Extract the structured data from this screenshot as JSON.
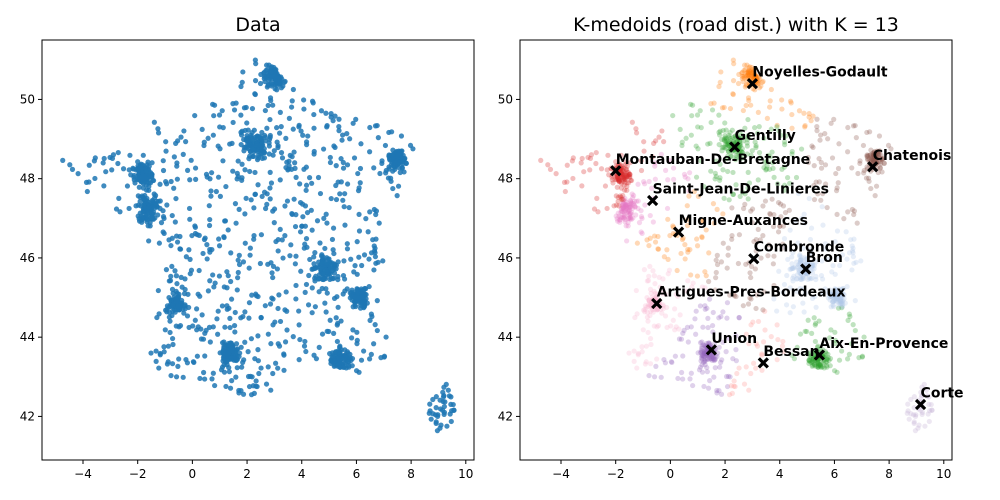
{
  "chart_data": [
    {
      "type": "scatter",
      "title": "Data",
      "xlim": [
        -5.5,
        10.3
      ],
      "ylim": [
        40.9,
        51.5
      ],
      "xticks": [
        -4,
        -2,
        0,
        2,
        4,
        6,
        8,
        10
      ],
      "yticks": [
        42,
        44,
        46,
        48,
        50
      ],
      "xtick_labels": [
        "−4",
        "−2",
        "0",
        "2",
        "4",
        "6",
        "8",
        "10"
      ],
      "ytick_labels": [
        "42",
        "44",
        "46",
        "48",
        "50"
      ],
      "point_color": "#1f77b4",
      "grid": false,
      "legend": "none"
    },
    {
      "type": "scatter",
      "title": "K-medoids (road dist.) with K = 13",
      "xlim": [
        -5.5,
        10.3
      ],
      "ylim": [
        40.9,
        51.5
      ],
      "xticks": [
        -4,
        -2,
        0,
        2,
        4,
        6,
        8,
        10
      ],
      "yticks": [
        42,
        44,
        46,
        48,
        50
      ],
      "xtick_labels": [
        "−4",
        "−2",
        "0",
        "2",
        "4",
        "6",
        "8",
        "10"
      ],
      "ytick_labels": [
        "42",
        "44",
        "46",
        "48",
        "50"
      ],
      "grid": false,
      "legend": "none",
      "medoids": [
        {
          "label": "Noyelles-Godault",
          "x": 3.0,
          "y": 50.4,
          "color": "#ff7f0e"
        },
        {
          "label": "Gentilly",
          "x": 2.35,
          "y": 48.8,
          "color": "#2ca02c"
        },
        {
          "label": "Chatenois",
          "x": 7.4,
          "y": 48.3,
          "color": "#8c564b"
        },
        {
          "label": "Montauban-De-Bretagne",
          "x": -2.0,
          "y": 48.2,
          "color": "#d62728"
        },
        {
          "label": "Saint-Jean-De-Linieres",
          "x": -0.65,
          "y": 47.45,
          "color": "#e377c2"
        },
        {
          "label": "Migne-Auxances",
          "x": 0.3,
          "y": 46.65,
          "color": "#ff7f0e"
        },
        {
          "label": "Combronde",
          "x": 3.05,
          "y": 45.98,
          "color": "#8c564b"
        },
        {
          "label": "Bron",
          "x": 4.95,
          "y": 45.72,
          "color": "#aec7e8"
        },
        {
          "label": "Artigues-Pres-Bordeaux",
          "x": -0.5,
          "y": 44.85,
          "color": "#f7b6d2"
        },
        {
          "label": "Union",
          "x": 1.5,
          "y": 43.68,
          "color": "#9467bd"
        },
        {
          "label": "Bessan",
          "x": 3.4,
          "y": 43.35,
          "color": "#ff9896"
        },
        {
          "label": "Aix-En-Provence",
          "x": 5.45,
          "y": 43.55,
          "color": "#2ca02c"
        },
        {
          "label": "Corte",
          "x": 9.15,
          "y": 42.3,
          "color": "#c5b0d5"
        }
      ]
    }
  ]
}
